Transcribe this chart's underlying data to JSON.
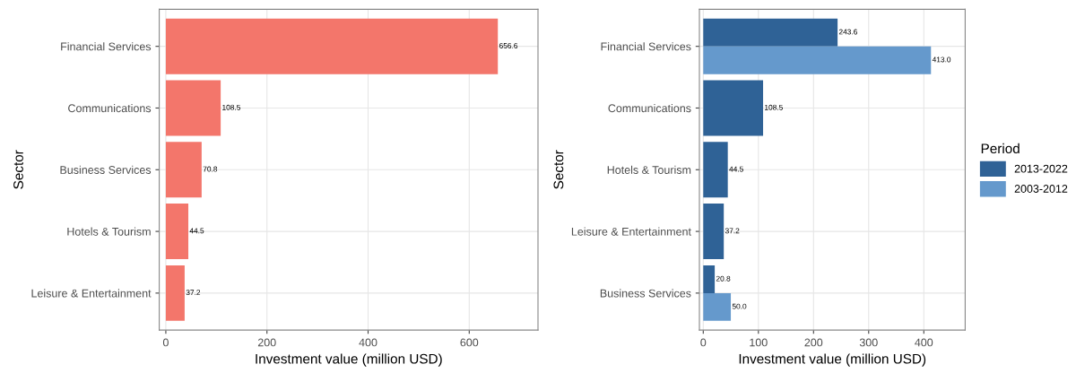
{
  "chart_data": [
    {
      "type": "bar",
      "orientation": "horizontal",
      "xlabel": "Investment value (million USD)",
      "ylabel": "Sector",
      "categories": [
        "Financial Services",
        "Communications",
        "Business Services",
        "Hotels & Tourism",
        "Leisure & Entertainment"
      ],
      "series": [
        {
          "color": "#f3766b",
          "values": [
            656.6,
            108.5,
            70.8,
            44.5,
            37.2
          ],
          "value_labels": [
            "656.6",
            "108.5",
            "70.8",
            "44.5",
            "37.2"
          ]
        }
      ],
      "xlim": [
        -13,
        736
      ],
      "xticks": [
        0,
        200,
        400,
        600
      ],
      "grid": true,
      "legend": false
    },
    {
      "type": "bar",
      "orientation": "horizontal",
      "xlabel": "Investment value (million USD)",
      "ylabel": "Sector",
      "legend_title": "Period",
      "categories": [
        "Financial Services",
        "Communications",
        "Hotels & Tourism",
        "Leisure & Entertainment",
        "Business Services"
      ],
      "series": [
        {
          "name": "2013-2022",
          "color": "#2f6296",
          "values": [
            243.6,
            108.5,
            44.5,
            37.2,
            20.8
          ],
          "value_labels": [
            "243.6",
            "108.5",
            "44.5",
            "37.2",
            "20.8"
          ]
        },
        {
          "name": "2003-2012",
          "color": "#6599cc",
          "values": [
            413.0,
            null,
            null,
            null,
            50.0
          ],
          "value_labels": [
            "413.0",
            null,
            null,
            null,
            "50.0"
          ]
        }
      ],
      "xlim": [
        -7,
        475
      ],
      "xticks": [
        0,
        100,
        200,
        300,
        400
      ],
      "grid": true,
      "legend": "right"
    }
  ]
}
